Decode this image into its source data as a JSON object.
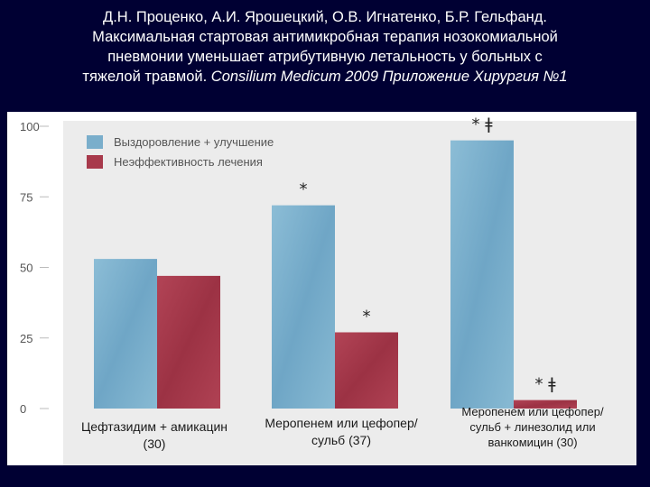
{
  "slide": {
    "title_authors": "Д.Н. Проценко, А.И. Ярошецкий, О.В. Игнатенко, Б.Р. Гельфанд.",
    "title_line2": "Максимальная стартовая антимикробная терапия нозокомиальной",
    "title_line3": "пневмонии уменьшает атрибутивную летальность у больных с",
    "title_line4_start": "тяжелой травмой.",
    "title_line4_cite": " Consilium Medicum 2009 Приложение Хирургия №1"
  },
  "chart_data": {
    "type": "bar",
    "categories": [
      "Цефтазидим + амикацин (30)",
      "Меропенем или цефопер/сульб (37)",
      "Меропенем или цефопер/сульб + линезолид или ванкомицин (30)"
    ],
    "series": [
      {
        "name": "Выздоровление + улучшение",
        "color": "#7aaecb",
        "values": [
          53,
          72,
          95
        ],
        "markers": [
          "",
          "*",
          "* ǂ"
        ]
      },
      {
        "name": "Неэффективность лечения",
        "color": "#a83a4c",
        "values": [
          47,
          27,
          3
        ],
        "markers": [
          "",
          "*",
          "* ǂ"
        ]
      }
    ],
    "ylim": [
      0,
      100
    ],
    "yticks": [
      "0",
      "25",
      "50",
      "75",
      "100"
    ],
    "grid": false,
    "legend_position": "top-left"
  }
}
